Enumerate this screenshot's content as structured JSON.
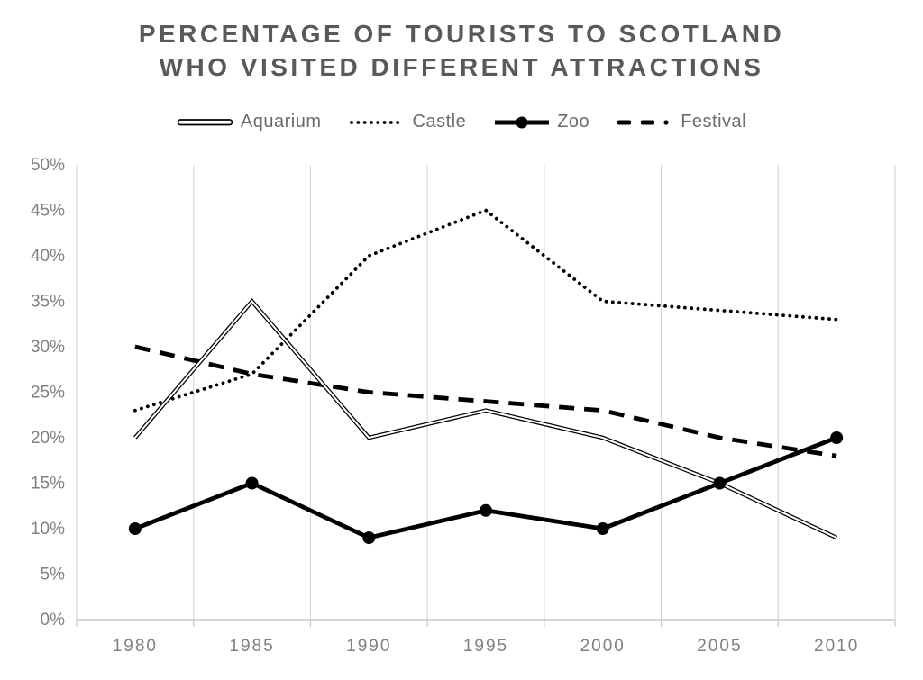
{
  "title": {
    "line1": "PERCENTAGE OF TOURISTS TO SCOTLAND",
    "line2": "WHO VISITED DIFFERENT ATTRACTIONS"
  },
  "chart_data": {
    "type": "line",
    "title": "PERCENTAGE OF TOURISTS TO SCOTLAND WHO VISITED DIFFERENT ATTRACTIONS",
    "xlabel": "",
    "ylabel": "",
    "categories": [
      "1980",
      "1985",
      "1990",
      "1995",
      "2000",
      "2005",
      "2010"
    ],
    "series": [
      {
        "name": "Aquarium",
        "style": "double-line",
        "color": "#000000",
        "values": [
          20,
          35,
          20,
          23,
          20,
          15,
          9
        ]
      },
      {
        "name": "Castle",
        "style": "dotted",
        "color": "#000000",
        "values": [
          23,
          27,
          40,
          45,
          35,
          34,
          33
        ]
      },
      {
        "name": "Zoo",
        "style": "solid-marker",
        "color": "#000000",
        "values": [
          10,
          15,
          9,
          12,
          10,
          15,
          20
        ]
      },
      {
        "name": "Festival",
        "style": "dash-dot",
        "color": "#000000",
        "values": [
          30,
          27,
          25,
          24,
          23,
          20,
          18
        ]
      }
    ],
    "ylim": [
      0,
      50
    ],
    "yticks": {
      "values": [
        0,
        5,
        10,
        15,
        20,
        25,
        30,
        35,
        40,
        45,
        50
      ],
      "labels": [
        "0%",
        "5%",
        "10%",
        "15%",
        "20%",
        "25%",
        "30%",
        "35%",
        "40%",
        "45%",
        "50%"
      ]
    },
    "grid": "vertical-only",
    "legend_position": "top",
    "colors": {
      "title": "#595959",
      "axis_label": "#808080",
      "legend_label": "#6b6b6b",
      "gridline": "#d9d9d9",
      "axis_line": "#c9c9c9",
      "series": "#000000",
      "background": "#ffffff"
    }
  }
}
